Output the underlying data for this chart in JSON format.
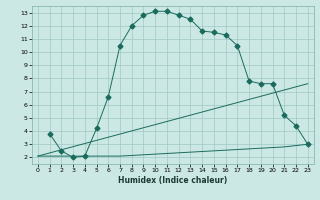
{
  "xlabel": "Humidex (Indice chaleur)",
  "bg_color": "#cce8e4",
  "grid_color": "#a0c8c4",
  "line_color": "#1a6b5e",
  "xlim": [
    -0.5,
    23.5
  ],
  "ylim": [
    1.5,
    13.5
  ],
  "xticks": [
    0,
    1,
    2,
    3,
    4,
    5,
    6,
    7,
    8,
    9,
    10,
    11,
    12,
    13,
    14,
    15,
    16,
    17,
    18,
    19,
    20,
    21,
    22,
    23
  ],
  "yticks": [
    2,
    3,
    4,
    5,
    6,
    7,
    8,
    9,
    10,
    11,
    12,
    13
  ],
  "curve1_x": [
    1,
    2,
    3,
    4,
    5,
    6,
    7,
    8,
    9,
    10,
    11,
    12,
    13,
    14,
    15,
    16,
    17,
    18,
    19,
    20,
    21,
    22,
    23
  ],
  "curve1_y": [
    3.8,
    2.5,
    2.0,
    2.1,
    4.2,
    6.6,
    10.5,
    12.0,
    12.8,
    13.1,
    13.1,
    12.8,
    12.5,
    11.6,
    11.5,
    11.3,
    10.5,
    7.8,
    7.6,
    7.6,
    5.2,
    4.4,
    3.0
  ],
  "curve2_x": [
    0,
    1,
    2,
    3,
    4,
    5,
    6,
    7,
    8,
    9,
    10,
    11,
    12,
    13,
    14,
    15,
    16,
    17,
    18,
    19,
    20,
    21,
    22,
    23
  ],
  "curve2_y": [
    2.1,
    2.1,
    2.1,
    2.1,
    2.1,
    2.1,
    2.1,
    2.1,
    2.15,
    2.2,
    2.25,
    2.3,
    2.35,
    2.4,
    2.45,
    2.5,
    2.55,
    2.6,
    2.65,
    2.7,
    2.75,
    2.8,
    2.9,
    3.0
  ],
  "curve3_x": [
    0,
    23
  ],
  "curve3_y": [
    2.1,
    7.6
  ],
  "marker_size": 2.5
}
